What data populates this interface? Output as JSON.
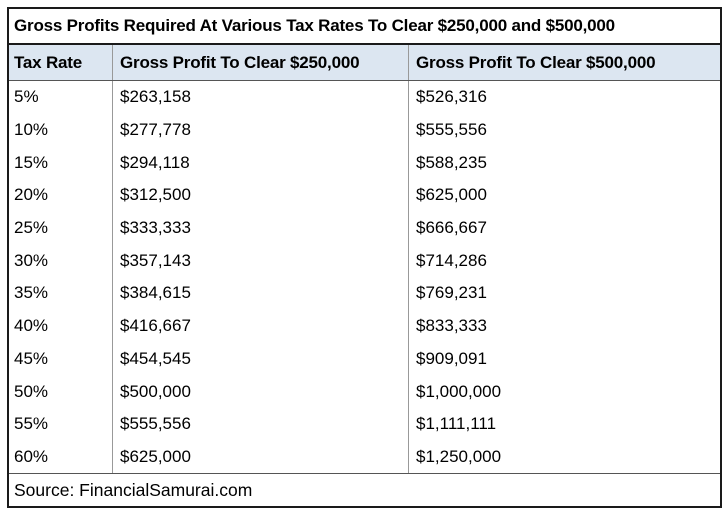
{
  "chart_data": {
    "type": "table",
    "title": "Gross Profits Required At Various Tax Rates To Clear $250,000 and $500,000",
    "columns": [
      "Tax Rate",
      "Gross Profit To Clear $250,000",
      "Gross Profit To Clear $500,000"
    ],
    "rows": [
      [
        "5%",
        "$263,158",
        "$526,316"
      ],
      [
        "10%",
        "$277,778",
        "$555,556"
      ],
      [
        "15%",
        "$294,118",
        "$588,235"
      ],
      [
        "20%",
        "$312,500",
        "$625,000"
      ],
      [
        "25%",
        "$333,333",
        "$666,667"
      ],
      [
        "30%",
        "$357,143",
        "$714,286"
      ],
      [
        "35%",
        "$384,615",
        "$769,231"
      ],
      [
        "40%",
        "$416,667",
        "$833,333"
      ],
      [
        "45%",
        "$454,545",
        "$909,091"
      ],
      [
        "50%",
        "$500,000",
        "$1,000,000"
      ],
      [
        "55%",
        "$555,556",
        "$1,111,111"
      ],
      [
        "60%",
        "$625,000",
        "$1,250,000"
      ]
    ],
    "source": "Source: FinancialSamurai.com"
  },
  "colors": {
    "header_bg": "#dce6f1",
    "border_outer": "#1a1a1a",
    "divider": "#999999",
    "rule": "#555555",
    "text": "#000000",
    "page_bg": "#ffffff"
  }
}
